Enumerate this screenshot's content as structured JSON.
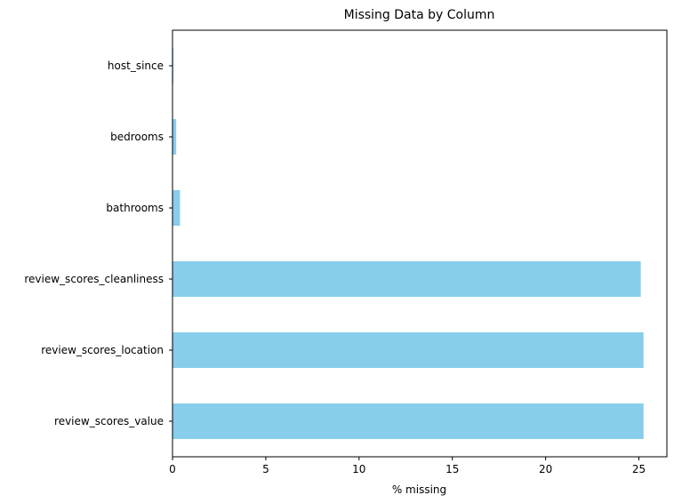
{
  "chart_data": {
    "type": "bar",
    "orientation": "horizontal",
    "title": "Missing Data by Column",
    "xlabel": "% missing",
    "ylabel": "",
    "categories": [
      "host_since",
      "bedrooms",
      "bathrooms",
      "review_scores_cleanliness",
      "review_scores_location",
      "review_scores_value"
    ],
    "values": [
      0.05,
      0.2,
      0.4,
      25.1,
      25.25,
      25.25
    ],
    "xlim": [
      0,
      26.5
    ],
    "xticks": [
      0,
      5,
      10,
      15,
      20,
      25
    ],
    "bar_color": "#87ceeb",
    "grid": false,
    "legend": "none"
  }
}
